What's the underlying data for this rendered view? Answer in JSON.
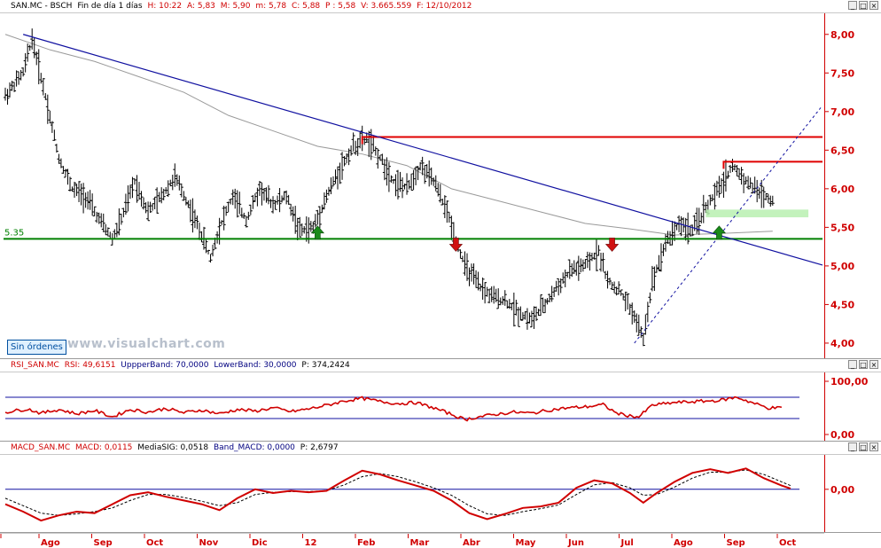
{
  "price_header": {
    "symbol": "SAN.MC - BSCH",
    "period": "Fin de día 1 días",
    "H": "H: 10:22",
    "A": "A: 5,83",
    "M": "M: 5,90",
    "m": "m: 5,78",
    "C": "C: 5,88",
    "P": "P : 5,58",
    "V": "V: 3.665.559",
    "F": "F: 12/10/2012"
  },
  "rsi_header": {
    "name": "RSI_SAN.MC",
    "value": "RSI: 49,6151",
    "upper": "UppperBand: 70,0000",
    "lower": "LowerBand: 30,0000",
    "p": "P: 374,2424"
  },
  "macd_header": {
    "name": "MACD_SAN.MC",
    "macd": "MACD: 0,0115",
    "sig": "MediaSIG: 0,0518",
    "band": "Band_MACD: 0,0000",
    "p": "P: 2,6797"
  },
  "window_buttons": [
    "_",
    "□",
    "×"
  ],
  "orders_button": "Sin órdenes",
  "watermark": "www.visualchart.com",
  "level_label": "5.35",
  "colors": {
    "price_axis": "#d00000",
    "trendline": "#1010a0",
    "support": "#008000",
    "resistance": "#e00000",
    "moving_average": "#9a9a9a",
    "rsi_line": "#d00000",
    "macd_line": "#d00000",
    "signal_line": "#000000",
    "arrow_up": "#1a8a1a",
    "arrow_down": "#d01010",
    "zone": "#b8f0b0"
  },
  "chart_data": [
    {
      "type": "bar",
      "subtype": "ohlc",
      "title": "SAN.MC - BSCH",
      "x_tick_labels": [
        "Ago",
        "Sep",
        "Oct",
        "Nov",
        "Dic",
        "12",
        "Feb",
        "Mar",
        "Abr",
        "May",
        "Jun",
        "Jul",
        "Ago",
        "Sep",
        "Oct"
      ],
      "y_tick_labels": [
        "8,00",
        "7,50",
        "7,00",
        "6,50",
        "6,00",
        "5,50",
        "5,00",
        "4,50",
        "4,00"
      ],
      "ylim": [
        3.85,
        8.25
      ],
      "close_path": [
        [
          0,
          7.2
        ],
        [
          4,
          7.5
        ],
        [
          6,
          7.95
        ],
        [
          9,
          7.2
        ],
        [
          12,
          6.4
        ],
        [
          15,
          6.0
        ],
        [
          18,
          5.9
        ],
        [
          21,
          5.6
        ],
        [
          24,
          5.35
        ],
        [
          26,
          5.6
        ],
        [
          29,
          6.1
        ],
        [
          32,
          5.7
        ],
        [
          35,
          5.9
        ],
        [
          38,
          6.15
        ],
        [
          41,
          5.8
        ],
        [
          44,
          5.4
        ],
        [
          46,
          5.1
        ],
        [
          48,
          5.5
        ],
        [
          51,
          5.9
        ],
        [
          54,
          5.6
        ],
        [
          57,
          6.0
        ],
        [
          60,
          5.8
        ],
        [
          63,
          5.9
        ],
        [
          66,
          5.45
        ],
        [
          69,
          5.5
        ],
        [
          72,
          5.9
        ],
        [
          75,
          6.25
        ],
        [
          78,
          6.55
        ],
        [
          81,
          6.65
        ],
        [
          84,
          6.4
        ],
        [
          87,
          6.1
        ],
        [
          90,
          6.0
        ],
        [
          93,
          6.3
        ],
        [
          96,
          6.1
        ],
        [
          99,
          5.7
        ],
        [
          101,
          5.35
        ],
        [
          103,
          5.0
        ],
        [
          106,
          4.75
        ],
        [
          109,
          4.6
        ],
        [
          112,
          4.55
        ],
        [
          115,
          4.4
        ],
        [
          118,
          4.3
        ],
        [
          121,
          4.5
        ],
        [
          124,
          4.75
        ],
        [
          127,
          4.95
        ],
        [
          130,
          5.0
        ],
        [
          133,
          5.2
        ],
        [
          135,
          4.8
        ],
        [
          138,
          4.65
        ],
        [
          141,
          4.35
        ],
        [
          143,
          4.05
        ],
        [
          145,
          4.8
        ],
        [
          148,
          5.3
        ],
        [
          151,
          5.55
        ],
        [
          154,
          5.45
        ],
        [
          157,
          5.75
        ],
        [
          160,
          6.0
        ],
        [
          163,
          6.3
        ],
        [
          166,
          6.1
        ],
        [
          169,
          5.95
        ],
        [
          172,
          5.85
        ]
      ],
      "moving_average": [
        [
          0,
          8.0
        ],
        [
          10,
          7.8
        ],
        [
          20,
          7.65
        ],
        [
          30,
          7.45
        ],
        [
          40,
          7.25
        ],
        [
          50,
          6.95
        ],
        [
          60,
          6.75
        ],
        [
          70,
          6.55
        ],
        [
          80,
          6.45
        ],
        [
          90,
          6.3
        ],
        [
          100,
          6.0
        ],
        [
          110,
          5.85
        ],
        [
          120,
          5.7
        ],
        [
          130,
          5.55
        ],
        [
          140,
          5.48
        ],
        [
          150,
          5.4
        ],
        [
          160,
          5.42
        ],
        [
          172,
          5.45
        ]
      ],
      "trendline": {
        "from": [
          4,
          8.0
        ],
        "to": [
          178,
          5.1
        ]
      },
      "support_level": 5.35,
      "resistance_levels": [
        {
          "value": 6.67,
          "from": 80,
          "to": 178
        },
        {
          "value": 6.35,
          "from": 161,
          "to": 178
        }
      ],
      "rising_support": {
        "from": [
          141,
          4.0
        ],
        "to": [
          178,
          7.05
        ]
      },
      "zone": {
        "from": 157,
        "to": 180,
        "low": 5.63,
        "high": 5.73
      },
      "arrows": [
        {
          "dir": "up",
          "x": 70,
          "y": 5.38
        },
        {
          "dir": "down",
          "x": 101,
          "y": 5.35
        },
        {
          "dir": "down",
          "x": 136,
          "y": 5.35
        },
        {
          "dir": "up",
          "x": 160,
          "y": 5.38
        }
      ]
    },
    {
      "type": "line",
      "title": "RSI_SAN.MC",
      "y_tick_labels": [
        "100,00",
        "0,00"
      ],
      "ylim": [
        -10,
        115
      ],
      "upper_band": 70,
      "lower_band": 30,
      "values": [
        [
          0,
          42
        ],
        [
          5,
          48
        ],
        [
          8,
          40
        ],
        [
          12,
          47
        ],
        [
          16,
          39
        ],
        [
          20,
          45
        ],
        [
          24,
          33
        ],
        [
          28,
          47
        ],
        [
          32,
          42
        ],
        [
          36,
          49
        ],
        [
          40,
          41
        ],
        [
          44,
          46
        ],
        [
          48,
          39
        ],
        [
          52,
          47
        ],
        [
          56,
          44
        ],
        [
          60,
          50
        ],
        [
          64,
          43
        ],
        [
          68,
          48
        ],
        [
          72,
          55
        ],
        [
          76,
          63
        ],
        [
          80,
          68
        ],
        [
          84,
          62
        ],
        [
          88,
          58
        ],
        [
          92,
          60
        ],
        [
          96,
          50
        ],
        [
          100,
          38
        ],
        [
          103,
          28
        ],
        [
          106,
          33
        ],
        [
          110,
          38
        ],
        [
          114,
          42
        ],
        [
          118,
          40
        ],
        [
          122,
          46
        ],
        [
          126,
          50
        ],
        [
          130,
          52
        ],
        [
          134,
          56
        ],
        [
          137,
          40
        ],
        [
          140,
          35
        ],
        [
          142,
          33
        ],
        [
          145,
          55
        ],
        [
          150,
          60
        ],
        [
          155,
          62
        ],
        [
          160,
          64
        ],
        [
          164,
          70
        ],
        [
          168,
          58
        ],
        [
          171,
          50
        ],
        [
          174,
          50
        ]
      ]
    },
    {
      "type": "line",
      "title": "MACD_SAN.MC",
      "y_tick_labels": [
        "0,00"
      ],
      "ylim": [
        -0.55,
        0.45
      ],
      "zero_line": 0,
      "series": [
        {
          "name": "MACD",
          "values": [
            [
              0,
              -0.2
            ],
            [
              4,
              -0.3
            ],
            [
              8,
              -0.42
            ],
            [
              12,
              -0.35
            ],
            [
              16,
              -0.3
            ],
            [
              20,
              -0.32
            ],
            [
              24,
              -0.2
            ],
            [
              28,
              -0.08
            ],
            [
              32,
              -0.04
            ],
            [
              36,
              -0.1
            ],
            [
              40,
              -0.15
            ],
            [
              44,
              -0.2
            ],
            [
              48,
              -0.28
            ],
            [
              52,
              -0.12
            ],
            [
              56,
              0.0
            ],
            [
              60,
              -0.05
            ],
            [
              64,
              -0.02
            ],
            [
              68,
              -0.04
            ],
            [
              72,
              -0.02
            ],
            [
              76,
              0.12
            ],
            [
              80,
              0.25
            ],
            [
              84,
              0.2
            ],
            [
              88,
              0.12
            ],
            [
              92,
              0.05
            ],
            [
              96,
              -0.02
            ],
            [
              100,
              -0.15
            ],
            [
              104,
              -0.32
            ],
            [
              108,
              -0.4
            ],
            [
              112,
              -0.33
            ],
            [
              116,
              -0.25
            ],
            [
              120,
              -0.23
            ],
            [
              124,
              -0.18
            ],
            [
              128,
              0.02
            ],
            [
              132,
              0.12
            ],
            [
              136,
              0.08
            ],
            [
              140,
              -0.05
            ],
            [
              143,
              -0.18
            ],
            [
              146,
              -0.05
            ],
            [
              150,
              0.1
            ],
            [
              154,
              0.22
            ],
            [
              158,
              0.27
            ],
            [
              162,
              0.22
            ],
            [
              166,
              0.28
            ],
            [
              170,
              0.15
            ],
            [
              174,
              0.05
            ],
            [
              176,
              0.01
            ]
          ]
        },
        {
          "name": "MediaSIG",
          "values": [
            [
              0,
              -0.12
            ],
            [
              4,
              -0.22
            ],
            [
              8,
              -0.32
            ],
            [
              12,
              -0.35
            ],
            [
              16,
              -0.33
            ],
            [
              20,
              -0.3
            ],
            [
              24,
              -0.25
            ],
            [
              28,
              -0.15
            ],
            [
              32,
              -0.07
            ],
            [
              36,
              -0.07
            ],
            [
              40,
              -0.11
            ],
            [
              44,
              -0.16
            ],
            [
              48,
              -0.22
            ],
            [
              52,
              -0.18
            ],
            [
              56,
              -0.07
            ],
            [
              60,
              -0.04
            ],
            [
              64,
              -0.03
            ],
            [
              68,
              -0.03
            ],
            [
              72,
              -0.02
            ],
            [
              76,
              0.06
            ],
            [
              80,
              0.17
            ],
            [
              84,
              0.21
            ],
            [
              88,
              0.17
            ],
            [
              92,
              0.1
            ],
            [
              96,
              0.02
            ],
            [
              100,
              -0.08
            ],
            [
              104,
              -0.22
            ],
            [
              108,
              -0.33
            ],
            [
              112,
              -0.35
            ],
            [
              116,
              -0.3
            ],
            [
              120,
              -0.26
            ],
            [
              124,
              -0.21
            ],
            [
              128,
              -0.07
            ],
            [
              132,
              0.06
            ],
            [
              136,
              0.09
            ],
            [
              140,
              0.02
            ],
            [
              143,
              -0.08
            ],
            [
              146,
              -0.07
            ],
            [
              150,
              0.03
            ],
            [
              154,
              0.15
            ],
            [
              158,
              0.23
            ],
            [
              162,
              0.23
            ],
            [
              166,
              0.26
            ],
            [
              170,
              0.2
            ],
            [
              174,
              0.1
            ],
            [
              176,
              0.05
            ]
          ]
        }
      ]
    }
  ]
}
